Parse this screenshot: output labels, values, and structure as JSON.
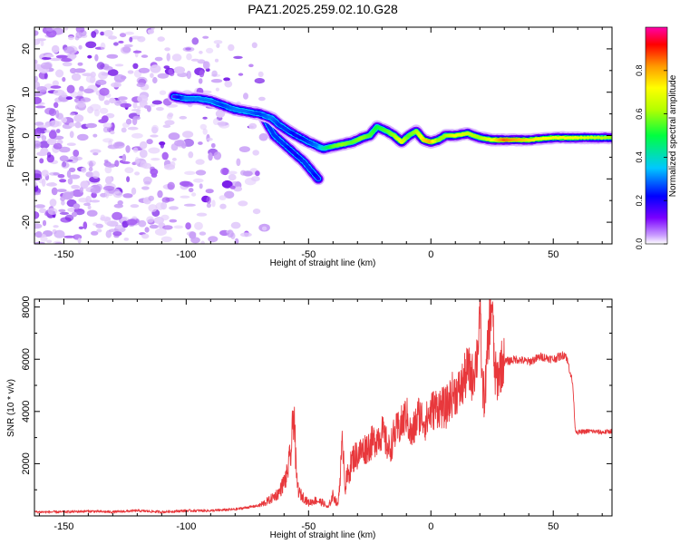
{
  "title": "PAZ1.2025.259.02.10.G28",
  "chart_data": [
    {
      "type": "heatmap",
      "xlabel": "Height of straight line (km)",
      "ylabel": "Frequency (Hz)",
      "xlim": [
        -162,
        74
      ],
      "ylim": [
        -25,
        25
      ],
      "x_ticks": [
        -150,
        -100,
        -50,
        0,
        50
      ],
      "x_tick_labels": [
        "-150",
        "-100",
        "-50",
        "0",
        "50"
      ],
      "y_ticks": [
        -20,
        -10,
        0,
        10,
        20
      ],
      "y_tick_labels": [
        "-20",
        "-10",
        "0",
        "10",
        "20"
      ],
      "grid": false,
      "colorbar": {
        "label": "Normalized spectral amplitude",
        "range": [
          0,
          1
        ],
        "ticks": [
          0.0,
          0.2,
          0.4,
          0.6,
          0.8
        ],
        "tick_labels": [
          "0.0",
          "0.2",
          "0.4",
          "0.6",
          "0.8"
        ]
      },
      "ridge": {
        "x": [
          -105,
          -100,
          -95,
          -90,
          -85,
          -80,
          -75,
          -70,
          -65,
          -62,
          -58,
          -55,
          -50,
          -46,
          -44,
          -40,
          -36,
          -32,
          -28,
          -25,
          -22,
          -18,
          -15,
          -12,
          -9,
          -6,
          -3,
          0,
          3,
          6,
          10,
          15,
          20,
          25,
          30,
          40,
          50,
          60,
          74
        ],
        "y": [
          9,
          8.5,
          8.5,
          8,
          7,
          6,
          5.5,
          5,
          4,
          2.5,
          1,
          0,
          -1.5,
          -2.5,
          -3,
          -2.5,
          -2,
          -1.5,
          -0.5,
          0,
          2,
          1,
          0,
          -1.5,
          0,
          1,
          -1,
          -1.5,
          -1,
          0,
          0,
          0.5,
          -0.5,
          -1,
          -1,
          -1,
          -0.5,
          -0.5,
          -0.5
        ],
        "amplitude": [
          0.15,
          0.3,
          0.3,
          0.3,
          0.25,
          0.3,
          0.3,
          0.25,
          0.3,
          0.25,
          0.25,
          0.2,
          0.25,
          0.3,
          0.4,
          0.55,
          0.6,
          0.55,
          0.6,
          0.55,
          0.5,
          0.55,
          0.6,
          0.7,
          0.55,
          0.6,
          0.75,
          0.8,
          0.6,
          0.6,
          0.7,
          0.65,
          0.6,
          0.7,
          0.85,
          0.75,
          0.7,
          0.7,
          0.6
        ]
      },
      "branch": {
        "x": [
          -68,
          -64,
          -60,
          -56,
          -52,
          -49,
          -46
        ],
        "y": [
          4,
          0,
          -2,
          -4,
          -6,
          -8,
          -10
        ],
        "amplitude": [
          0.25,
          0.25,
          0.25,
          0.2,
          0.25,
          0.25,
          0.2
        ]
      },
      "noise_region": {
        "x_range": [
          -162,
          -68
        ],
        "y_range": [
          -25,
          25
        ],
        "amplitude": 0.05
      }
    },
    {
      "type": "line",
      "xlabel": "Height of straight line (km)",
      "ylabel": "SNR (10 * v/v)",
      "xlim": [
        -162,
        74
      ],
      "ylim": [
        0,
        8300
      ],
      "x_ticks": [
        -150,
        -100,
        -50,
        0,
        50
      ],
      "x_tick_labels": [
        "-150",
        "-100",
        "-50",
        "0",
        "50"
      ],
      "y_ticks": [
        2000,
        4000,
        6000,
        8000
      ],
      "y_tick_labels": [
        "2000",
        "4000",
        "6000",
        "8000"
      ],
      "grid": false,
      "color": "#e8383c",
      "x": [
        -162,
        -150,
        -140,
        -130,
        -120,
        -110,
        -100,
        -90,
        -80,
        -70,
        -66,
        -62,
        -59,
        -57,
        -56,
        -55,
        -54,
        -52,
        -50,
        -47,
        -44,
        -42,
        -40,
        -38,
        -36,
        -35,
        -34,
        -32,
        -28,
        -24,
        -20,
        -17,
        -15,
        -12,
        -10,
        -8,
        -5,
        -2,
        0,
        3,
        6,
        9,
        12,
        15,
        17,
        19,
        20,
        21,
        22,
        24,
        25,
        26,
        27,
        28,
        29,
        30,
        35,
        40,
        45,
        50,
        55,
        57,
        58,
        59,
        60,
        65,
        70,
        74
      ],
      "y": [
        150,
        150,
        180,
        150,
        200,
        150,
        200,
        200,
        250,
        400,
        600,
        900,
        1500,
        2500,
        4300,
        1500,
        900,
        700,
        500,
        600,
        500,
        300,
        800,
        400,
        2900,
        1100,
        1500,
        2200,
        2500,
        2800,
        3200,
        2500,
        3100,
        3500,
        3900,
        3000,
        3900,
        3600,
        4000,
        4200,
        4100,
        4700,
        4800,
        5600,
        5300,
        6200,
        7900,
        5000,
        4500,
        7500,
        8200,
        5500,
        5200,
        5600,
        5800,
        5900,
        6000,
        5900,
        6100,
        6000,
        6200,
        5500,
        5000,
        3300,
        3200,
        3250,
        3200,
        3250
      ]
    }
  ]
}
